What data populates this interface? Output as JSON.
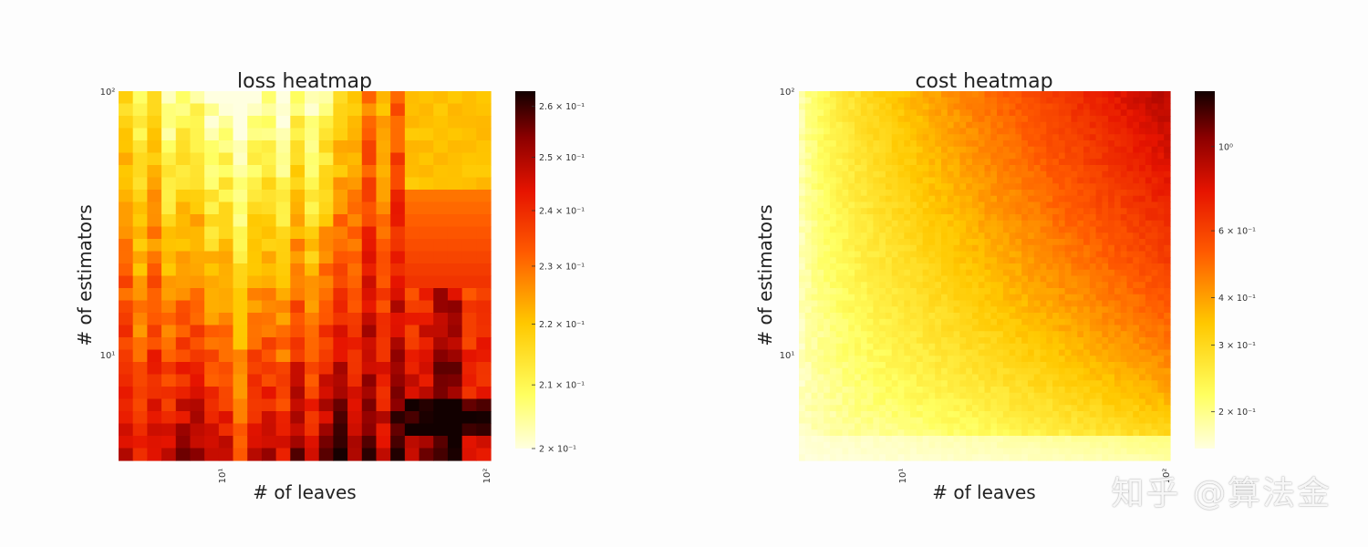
{
  "chart_data": [
    {
      "type": "heatmap",
      "title": "loss heatmap",
      "xlabel": "# of leaves",
      "ylabel": "# of estimators",
      "xscale": "log",
      "yscale": "log",
      "xlim": [
        4,
        100
      ],
      "ylim": [
        4,
        100
      ],
      "x_ticks": [
        {
          "value": 10,
          "label": "10¹"
        },
        {
          "value": 100,
          "label": "10²"
        }
      ],
      "y_ticks": [
        {
          "value": 10,
          "label": "10¹"
        },
        {
          "value": 100,
          "label": "10²"
        }
      ],
      "colormap": "hot_r",
      "colorbar": {
        "scale": "log",
        "min": 0.2,
        "max": 0.263,
        "ticks": [
          {
            "value": 0.2,
            "label": "2 × 10⁻¹"
          },
          {
            "value": 0.21,
            "label": "2.1 × 10⁻¹"
          },
          {
            "value": 0.22,
            "label": "2.2 × 10⁻¹"
          },
          {
            "value": 0.23,
            "label": "2.3 × 10⁻¹"
          },
          {
            "value": 0.24,
            "label": "2.4 × 10⁻¹"
          },
          {
            "value": 0.25,
            "label": "2.5 × 10⁻¹"
          },
          {
            "value": 0.26,
            "label": "2.6 × 10⁻¹"
          }
        ]
      },
      "pattern": "low loss (light yellow) around 10–25 leaves with many estimators; high loss (dark red/black) with few estimators and beyond ~50 leaves",
      "grid_cols": 26,
      "grid_rows": 30
    },
    {
      "type": "heatmap",
      "title": "cost heatmap",
      "xlabel": "# of leaves",
      "ylabel": "# of estimators",
      "xscale": "log",
      "yscale": "log",
      "xlim": [
        4,
        100
      ],
      "ylim": [
        4,
        100
      ],
      "x_ticks": [
        {
          "value": 10,
          "label": "10¹"
        },
        {
          "value": 100,
          "label": "10²"
        }
      ],
      "y_ticks": [
        {
          "value": 10,
          "label": "10¹"
        },
        {
          "value": 100,
          "label": "10²"
        }
      ],
      "colormap": "hot_r",
      "colorbar": {
        "scale": "log",
        "min": 0.16,
        "max": 1.4,
        "ticks": [
          {
            "value": 0.2,
            "label": "2 × 10⁻¹"
          },
          {
            "value": 0.3,
            "label": "3 × 10⁻¹"
          },
          {
            "value": 0.4,
            "label": "4 × 10⁻¹"
          },
          {
            "value": 0.6,
            "label": "6 × 10⁻¹"
          },
          {
            "value": 1.0,
            "label": "10⁰"
          }
        ]
      },
      "pattern": "cost grows with both leaves and estimators; highest (red) at top-right, lowest (pale yellow) at bottom-left",
      "grid_cols": 60,
      "grid_rows": 60
    }
  ],
  "watermark": "知乎 @算法金"
}
